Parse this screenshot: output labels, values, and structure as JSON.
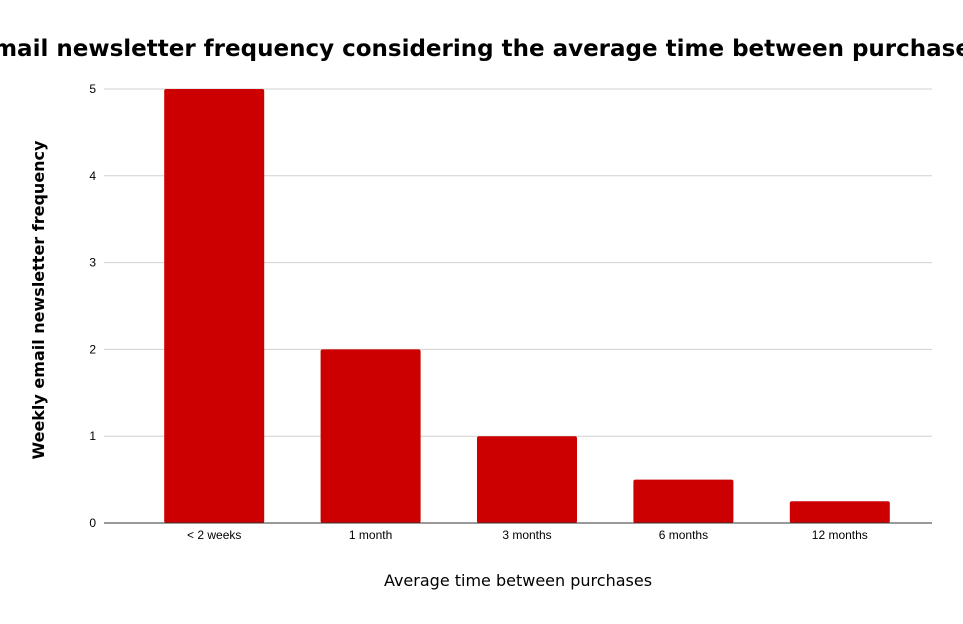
{
  "chart_data": {
    "type": "bar",
    "title": "Email newsletter frequency considering the average time between purchases",
    "xlabel": "Average time between purchases",
    "ylabel": "Weekly email newsletter frequency",
    "categories": [
      "< 2 weeks",
      "1 month",
      "3 months",
      "6 months",
      "12 months"
    ],
    "values": [
      5,
      2,
      1,
      0.5,
      0.25
    ],
    "ylim": [
      0,
      5
    ],
    "yticks": [
      "0",
      "1",
      "2",
      "3",
      "4",
      "5"
    ],
    "grid": true,
    "legend": "none",
    "bar_color": "#cc0000"
  }
}
